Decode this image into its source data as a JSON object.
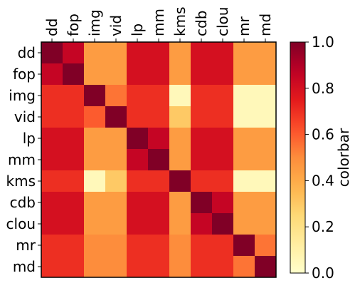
{
  "chart_data": {
    "type": "heatmap",
    "title": "",
    "xlabel": "",
    "ylabel": "",
    "labels": [
      "dd",
      "fop",
      "img",
      "vid",
      "lp",
      "mm",
      "kms",
      "cdb",
      "clou",
      "mr",
      "md"
    ],
    "matrix": [
      [
        1.0,
        0.85,
        0.45,
        0.45,
        0.8,
        0.8,
        0.45,
        0.8,
        0.8,
        0.45,
        0.45
      ],
      [
        0.85,
        1.0,
        0.45,
        0.45,
        0.8,
        0.8,
        0.45,
        0.8,
        0.8,
        0.45,
        0.45
      ],
      [
        0.7,
        0.7,
        1.0,
        0.55,
        0.7,
        0.7,
        0.05,
        0.7,
        0.7,
        0.05,
        0.05
      ],
      [
        0.7,
        0.7,
        0.6,
        1.0,
        0.7,
        0.7,
        0.3,
        0.7,
        0.7,
        0.05,
        0.05
      ],
      [
        0.8,
        0.8,
        0.45,
        0.45,
        1.0,
        0.85,
        0.45,
        0.8,
        0.8,
        0.45,
        0.45
      ],
      [
        0.8,
        0.8,
        0.45,
        0.45,
        0.85,
        1.0,
        0.45,
        0.8,
        0.8,
        0.45,
        0.45
      ],
      [
        0.7,
        0.7,
        0.05,
        0.3,
        0.7,
        0.7,
        1.0,
        0.7,
        0.7,
        0.05,
        0.05
      ],
      [
        0.8,
        0.8,
        0.45,
        0.45,
        0.8,
        0.8,
        0.45,
        1.0,
        0.85,
        0.45,
        0.45
      ],
      [
        0.8,
        0.8,
        0.45,
        0.45,
        0.8,
        0.8,
        0.45,
        0.85,
        1.0,
        0.45,
        0.45
      ],
      [
        0.7,
        0.7,
        0.5,
        0.5,
        0.7,
        0.7,
        0.5,
        0.7,
        0.7,
        1.0,
        0.55
      ],
      [
        0.7,
        0.7,
        0.5,
        0.5,
        0.7,
        0.7,
        0.5,
        0.7,
        0.7,
        0.55,
        1.0
      ]
    ],
    "colormap": "YlOrRd",
    "colorbar": {
      "label": "colorbar",
      "range": [
        0.0,
        1.0
      ],
      "ticks": [
        "0.0",
        "0.2",
        "0.4",
        "0.6",
        "0.8",
        "1.0"
      ],
      "tick_values": [
        0.0,
        0.2,
        0.4,
        0.6,
        0.8,
        1.0
      ]
    },
    "grid": false
  }
}
